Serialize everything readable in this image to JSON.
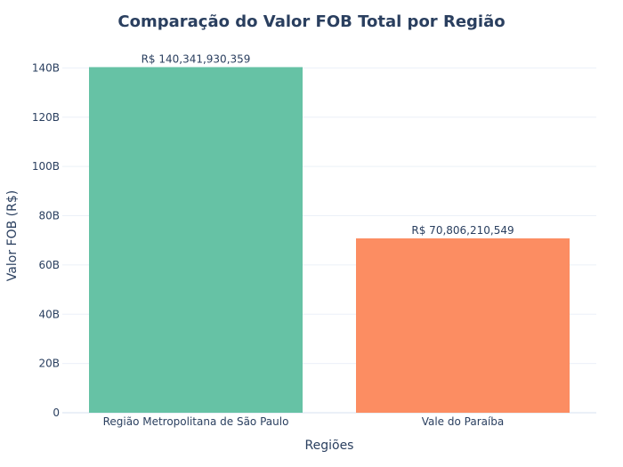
{
  "chart_data": {
    "type": "bar",
    "title": "Comparação do Valor FOB Total por Região",
    "xlabel": "Regiões",
    "ylabel": "Valor FOB (R$)",
    "categories": [
      "Região Metropolitana de São Paulo",
      "Vale do Paraíba"
    ],
    "values": [
      140341930359,
      70806210549
    ],
    "data_labels": [
      "R$ 140,341,930,359",
      "R$ 70,806,210,549"
    ],
    "colors": [
      "#66c2a5",
      "#fc8d62"
    ],
    "ylim": [
      0,
      147732000000
    ],
    "yticks": [
      0,
      20000000000,
      40000000000,
      60000000000,
      80000000000,
      100000000000,
      120000000000,
      140000000000
    ],
    "ytick_labels": [
      "0",
      "20B",
      "40B",
      "60B",
      "80B",
      "100B",
      "120B",
      "140B"
    ],
    "grid": true,
    "legend": "none"
  }
}
